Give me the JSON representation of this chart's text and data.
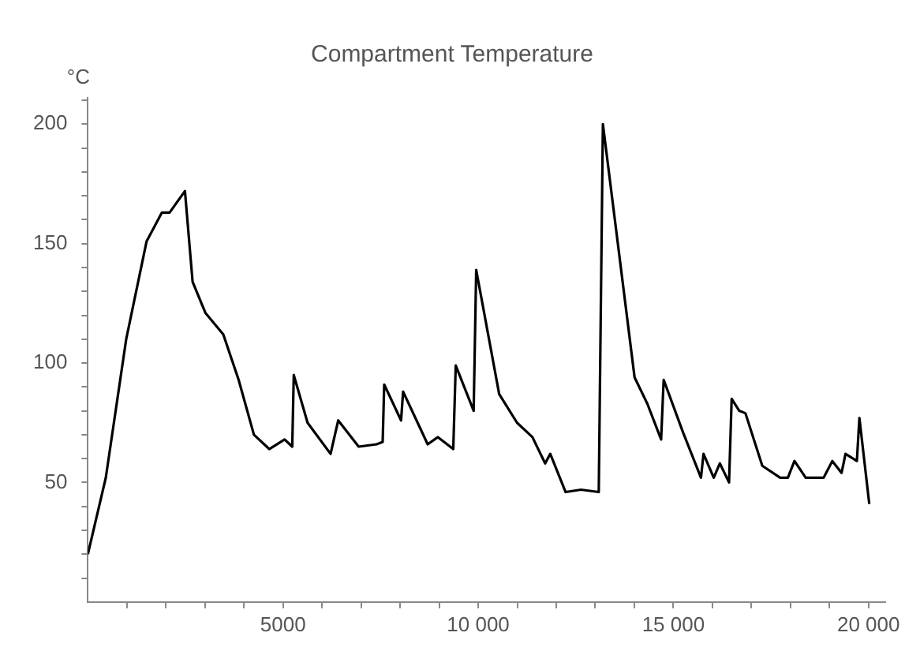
{
  "chart_data": {
    "type": "line",
    "title": "Compartment Temperature",
    "ylabel": "°C",
    "x": [
      0,
      459,
      982,
      1505,
      1897,
      2094,
      2487,
      2683,
      3011,
      3469,
      3862,
      4254,
      4647,
      5040,
      5236,
      5275,
      5629,
      6218,
      6414,
      6938,
      7396,
      7553,
      7592,
      8024,
      8077,
      8706,
      8968,
      9361,
      9425,
      9884,
      9949,
      10538,
      10996,
      11389,
      11716,
      11847,
      12240,
      12633,
      13089,
      13195,
      14007,
      14333,
      14687,
      14752,
      15248,
      15708,
      15773,
      16035,
      16192,
      16427,
      16494,
      16690,
      16847,
      17279,
      17738,
      17934,
      18103,
      18391,
      18850,
      19073,
      19309,
      19411,
      19702,
      19767,
      20020
    ],
    "series": [
      {
        "color": "#000000",
        "values": [
          20,
          52,
          110,
          151,
          163,
          163,
          172,
          134,
          121,
          112,
          93,
          70,
          64,
          68,
          65,
          95,
          75,
          62,
          76,
          65,
          66,
          67,
          91,
          76,
          88,
          66,
          69,
          64,
          99,
          80,
          139,
          87,
          75,
          69,
          58,
          62,
          46,
          47,
          46,
          200,
          94,
          83,
          68,
          93,
          71,
          52,
          62,
          52,
          58,
          50,
          85,
          80,
          79,
          57,
          52,
          52,
          59,
          52,
          52,
          59,
          54,
          62,
          59,
          77,
          41
        ]
      }
    ],
    "xlim": [
      0,
      20430
    ],
    "ylim": [
      0,
      211
    ],
    "xticks": [
      {
        "value": 1000,
        "label": null
      },
      {
        "value": 2000,
        "label": null
      },
      {
        "value": 3000,
        "label": null
      },
      {
        "value": 4000,
        "label": null
      },
      5000,
      {
        "value": 6000,
        "label": null
      },
      {
        "value": 7000,
        "label": null
      },
      {
        "value": 8000,
        "label": null
      },
      {
        "value": 9000,
        "label": null
      },
      {
        "value": 10000,
        "label": "10 000"
      },
      {
        "value": 11000,
        "label": null
      },
      {
        "value": 12000,
        "label": null
      },
      {
        "value": 13000,
        "label": null
      },
      {
        "value": 14000,
        "label": null
      },
      {
        "value": 15000,
        "label": "15 000"
      },
      {
        "value": 16000,
        "label": null
      },
      {
        "value": 17000,
        "label": null
      },
      {
        "value": 18000,
        "label": null
      },
      {
        "value": 19000,
        "label": null
      },
      {
        "value": 20000,
        "label": "20 000"
      }
    ],
    "yticks": [
      {
        "value": 10,
        "label": null
      },
      {
        "value": 20,
        "label": null
      },
      {
        "value": 30,
        "label": null
      },
      {
        "value": 40,
        "label": null
      },
      50,
      {
        "value": 60,
        "label": null
      },
      {
        "value": 70,
        "label": null
      },
      {
        "value": 80,
        "label": null
      },
      {
        "value": 90,
        "label": null
      },
      100,
      {
        "value": 110,
        "label": null
      },
      {
        "value": 120,
        "label": null
      },
      {
        "value": 130,
        "label": null
      },
      {
        "value": 140,
        "label": null
      },
      150,
      {
        "value": 160,
        "label": null
      },
      {
        "value": 170,
        "label": null
      },
      {
        "value": 180,
        "label": null
      },
      {
        "value": 190,
        "label": null
      },
      200,
      {
        "value": 210,
        "label": null
      }
    ],
    "grid": false,
    "legend": false,
    "marker": "none",
    "line_style": "solid"
  }
}
